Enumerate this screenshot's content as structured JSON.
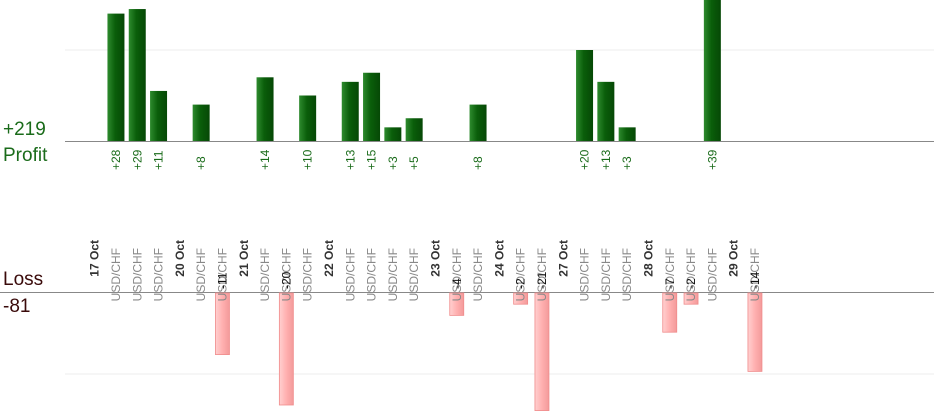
{
  "summary": {
    "profit_total": "+219",
    "profit_label": "Profit",
    "loss_label": "Loss",
    "loss_total": "-81"
  },
  "colors": {
    "profit_bar": "#0d6b0d",
    "profit_text": "#1a6b1a",
    "loss_bar": "#ffb3b3",
    "loss_text": "#3a0a0a",
    "axis": "#888888",
    "grid": "#eeeeee"
  },
  "chart_data": {
    "type": "bar",
    "title": "",
    "grid": true,
    "profit_ylim": [
      0,
      55
    ],
    "loss_ylim": [
      0,
      40
    ],
    "days": [
      {
        "date": "17 Oct",
        "trades": [
          {
            "pair": "USD/CHF",
            "pnl": 28,
            "label": "+28"
          },
          {
            "pair": "USD/CHF",
            "pnl": 29,
            "label": "+29"
          },
          {
            "pair": "USD/CHF",
            "pnl": 11,
            "label": "+11"
          }
        ]
      },
      {
        "date": "20 Oct",
        "trades": [
          {
            "pair": "USD/CHF",
            "pnl": 8,
            "label": "+8"
          },
          {
            "pair": "USD/CHF",
            "pnl": -11,
            "label": "-11"
          }
        ]
      },
      {
        "date": "21 Oct",
        "trades": [
          {
            "pair": "USD/CHF",
            "pnl": 14,
            "label": "+14"
          },
          {
            "pair": "USD/CHF",
            "pnl": -20,
            "label": "-20"
          },
          {
            "pair": "USD/CHF",
            "pnl": 10,
            "label": "+10"
          }
        ]
      },
      {
        "date": "22 Oct",
        "trades": [
          {
            "pair": "USD/CHF",
            "pnl": 13,
            "label": "+13"
          },
          {
            "pair": "USD/CHF",
            "pnl": 15,
            "label": "+15"
          },
          {
            "pair": "USD/CHF",
            "pnl": 3,
            "label": "+3"
          },
          {
            "pair": "USD/CHF",
            "pnl": 5,
            "label": "+5"
          }
        ]
      },
      {
        "date": "23 Oct",
        "trades": [
          {
            "pair": "USD/CHF",
            "pnl": -4,
            "label": "-4"
          },
          {
            "pair": "USD/CHF",
            "pnl": 8,
            "label": "+8"
          }
        ]
      },
      {
        "date": "24 Oct",
        "trades": [
          {
            "pair": "USD/CHF",
            "pnl": -2,
            "label": "-2"
          },
          {
            "pair": "USD/CHF",
            "pnl": -21,
            "label": "-21"
          }
        ]
      },
      {
        "date": "27 Oct",
        "trades": [
          {
            "pair": "USD/CHF",
            "pnl": 20,
            "label": "+20"
          },
          {
            "pair": "USD/CHF",
            "pnl": 13,
            "label": "+13"
          },
          {
            "pair": "USD/CHF",
            "pnl": 3,
            "label": "+3"
          }
        ]
      },
      {
        "date": "28 Oct",
        "trades": [
          {
            "pair": "USD/CHF",
            "pnl": -7,
            "label": "-7"
          },
          {
            "pair": "USD/CHF",
            "pnl": -2,
            "label": "-2"
          },
          {
            "pair": "USD/CHF",
            "pnl": 39,
            "label": "+39"
          }
        ]
      },
      {
        "date": "29 Oct",
        "trades": [
          {
            "pair": "USD/CHF",
            "pnl": -14,
            "label": "-14"
          }
        ]
      }
    ]
  }
}
